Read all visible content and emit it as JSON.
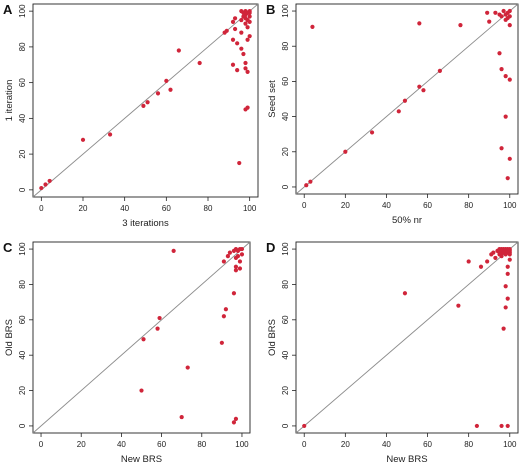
{
  "figure": {
    "background": "#ffffff",
    "point_color": "#d0253a",
    "diagonal_color": "#8c8c8c"
  },
  "chart_data": [
    {
      "panel_label": "A",
      "type": "scatter",
      "xlabel": "3 iterations",
      "ylabel": "1 iteration",
      "xlim": [
        0,
        100
      ],
      "ylim": [
        0,
        100
      ],
      "xticks": [
        0,
        20,
        40,
        60,
        80,
        100
      ],
      "yticks": [
        0,
        20,
        40,
        60,
        80,
        100
      ],
      "diagonal": true,
      "points": [
        [
          0,
          1
        ],
        [
          2,
          3
        ],
        [
          4,
          5
        ],
        [
          20,
          28
        ],
        [
          33,
          31
        ],
        [
          49,
          47
        ],
        [
          51,
          49
        ],
        [
          56,
          54
        ],
        [
          60,
          61
        ],
        [
          62,
          56
        ],
        [
          66,
          78
        ],
        [
          76,
          71
        ],
        [
          88,
          88
        ],
        [
          89,
          89
        ],
        [
          92,
          94
        ],
        [
          93,
          96
        ],
        [
          93,
          90
        ],
        [
          92,
          84
        ],
        [
          94,
          82
        ],
        [
          92,
          70
        ],
        [
          94,
          67
        ],
        [
          95,
          15
        ],
        [
          96,
          88
        ],
        [
          96,
          79
        ],
        [
          97,
          76
        ],
        [
          98,
          71
        ],
        [
          98,
          68
        ],
        [
          98,
          45
        ],
        [
          99,
          46
        ],
        [
          99,
          66
        ],
        [
          99,
          84
        ],
        [
          100,
          86
        ],
        [
          99,
          91
        ],
        [
          98,
          93
        ],
        [
          100,
          94
        ],
        [
          96,
          95
        ],
        [
          97,
          97
        ],
        [
          98,
          98
        ],
        [
          99,
          99
        ],
        [
          100,
          100
        ],
        [
          96,
          100
        ],
        [
          100,
          97
        ],
        [
          98,
          100
        ],
        [
          99,
          95
        ],
        [
          97,
          99
        ],
        [
          100,
          99
        ],
        [
          98,
          96
        ]
      ]
    },
    {
      "panel_label": "B",
      "type": "scatter",
      "xlabel": "50% nr",
      "ylabel": "Seed set",
      "xlim": [
        0,
        100
      ],
      "ylim": [
        0,
        100
      ],
      "xticks": [
        0,
        20,
        40,
        60,
        80,
        100
      ],
      "yticks": [
        0,
        20,
        40,
        60,
        80,
        100
      ],
      "diagonal": true,
      "points": [
        [
          1,
          1
        ],
        [
          3,
          3
        ],
        [
          4,
          91
        ],
        [
          20,
          20
        ],
        [
          33,
          31
        ],
        [
          46,
          43
        ],
        [
          49,
          49
        ],
        [
          56,
          57
        ],
        [
          58,
          55
        ],
        [
          66,
          66
        ],
        [
          56,
          93
        ],
        [
          76,
          92
        ],
        [
          89,
          99
        ],
        [
          90,
          94
        ],
        [
          93,
          99
        ],
        [
          95,
          98
        ],
        [
          96,
          97
        ],
        [
          95,
          76
        ],
        [
          96,
          67
        ],
        [
          96,
          22
        ],
        [
          98,
          63
        ],
        [
          98,
          40
        ],
        [
          99,
          5
        ],
        [
          100,
          16
        ],
        [
          100,
          61
        ],
        [
          100,
          92
        ],
        [
          99,
          96
        ],
        [
          98,
          98
        ],
        [
          99,
          99
        ],
        [
          100,
          100
        ],
        [
          97,
          100
        ],
        [
          100,
          97
        ],
        [
          98,
          95
        ]
      ]
    },
    {
      "panel_label": "C",
      "type": "scatter",
      "xlabel": "New BRS",
      "ylabel": "Old BRS",
      "xlim": [
        0,
        100
      ],
      "ylim": [
        0,
        100
      ],
      "xticks": [
        0,
        20,
        40,
        60,
        80,
        100
      ],
      "yticks": [
        0,
        20,
        40,
        60,
        80,
        100
      ],
      "diagonal": true,
      "points": [
        [
          50,
          20
        ],
        [
          51,
          49
        ],
        [
          58,
          55
        ],
        [
          59,
          61
        ],
        [
          66,
          99
        ],
        [
          70,
          5
        ],
        [
          73,
          33
        ],
        [
          90,
          47
        ],
        [
          91,
          62
        ],
        [
          92,
          66
        ],
        [
          91,
          93
        ],
        [
          93,
          96
        ],
        [
          94,
          98
        ],
        [
          96,
          75
        ],
        [
          97,
          88
        ],
        [
          97,
          90
        ],
        [
          97,
          95
        ],
        [
          98,
          96
        ],
        [
          99,
          93
        ],
        [
          99,
          89
        ],
        [
          100,
          97
        ],
        [
          96,
          99
        ],
        [
          97,
          100
        ],
        [
          98,
          99
        ],
        [
          99,
          100
        ],
        [
          100,
          100
        ],
        [
          96,
          2
        ],
        [
          97,
          4
        ]
      ]
    },
    {
      "panel_label": "D",
      "type": "scatter",
      "xlabel": "New BRS",
      "ylabel": "Old BRS",
      "xlim": [
        0,
        100
      ],
      "ylim": [
        0,
        100
      ],
      "xticks": [
        0,
        20,
        40,
        60,
        80,
        100
      ],
      "yticks": [
        0,
        20,
        40,
        60,
        80,
        100
      ],
      "diagonal": true,
      "points": [
        [
          0,
          0
        ],
        [
          49,
          75
        ],
        [
          75,
          68
        ],
        [
          80,
          93
        ],
        [
          84,
          0
        ],
        [
          86,
          90
        ],
        [
          89,
          93
        ],
        [
          91,
          97
        ],
        [
          93,
          95
        ],
        [
          95,
          97
        ],
        [
          96,
          96
        ],
        [
          96,
          0
        ],
        [
          97,
          100
        ],
        [
          97,
          55
        ],
        [
          98,
          67
        ],
        [
          98,
          79
        ],
        [
          99,
          86
        ],
        [
          99,
          72
        ],
        [
          99,
          90
        ],
        [
          100,
          94
        ],
        [
          100,
          98
        ],
        [
          94,
          99
        ],
        [
          95,
          100
        ],
        [
          97,
          98
        ],
        [
          98,
          99
        ],
        [
          99,
          100
        ],
        [
          100,
          99
        ],
        [
          96,
          98
        ],
        [
          98,
          97
        ],
        [
          99,
          98
        ],
        [
          100,
          100
        ],
        [
          97,
          99
        ],
        [
          98,
          100
        ],
        [
          99,
          99
        ],
        [
          100,
          97
        ],
        [
          96,
          100
        ],
        [
          95,
          98
        ],
        [
          92,
          98
        ],
        [
          99,
          0
        ]
      ]
    }
  ]
}
